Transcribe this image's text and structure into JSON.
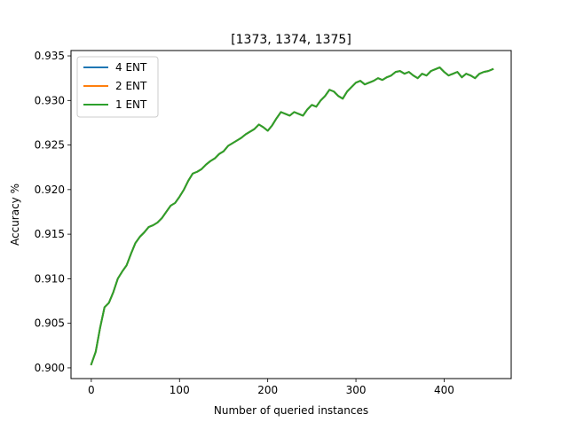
{
  "colors": {
    "series_4_ent": "#1f77b4",
    "series_2_ent": "#ff7f0e",
    "series_1_ent": "#2ca02c",
    "axes": "#000000",
    "background": "#ffffff"
  },
  "chart_data": {
    "type": "line",
    "title": "[1373, 1374, 1375]",
    "xlabel": "Number of queried instances",
    "ylabel": "Accuracy %",
    "xlim": [
      -23,
      476
    ],
    "ylim": [
      0.8988,
      0.9356
    ],
    "xticks": [
      0,
      100,
      200,
      300,
      400
    ],
    "xtick_labels": [
      "0",
      "100",
      "200",
      "300",
      "400"
    ],
    "yticks": [
      0.9,
      0.905,
      0.91,
      0.915,
      0.92,
      0.925,
      0.93,
      0.935
    ],
    "ytick_labels": [
      "0.900",
      "0.905",
      "0.910",
      "0.915",
      "0.920",
      "0.925",
      "0.930",
      "0.935"
    ],
    "grid": false,
    "legend": "top-left",
    "x": [
      0,
      5,
      10,
      15,
      20,
      25,
      30,
      35,
      40,
      45,
      50,
      55,
      60,
      65,
      70,
      75,
      80,
      85,
      90,
      95,
      100,
      105,
      110,
      115,
      120,
      125,
      130,
      135,
      140,
      145,
      150,
      155,
      160,
      165,
      170,
      175,
      180,
      185,
      190,
      195,
      200,
      205,
      210,
      215,
      220,
      225,
      230,
      235,
      240,
      245,
      250,
      255,
      260,
      265,
      270,
      275,
      280,
      285,
      290,
      295,
      300,
      305,
      310,
      315,
      320,
      325,
      330,
      335,
      340,
      345,
      350,
      355,
      360,
      365,
      370,
      375,
      380,
      385,
      390,
      395,
      400,
      405,
      410,
      415,
      420,
      425,
      430,
      435,
      440,
      445,
      450,
      455
    ],
    "series": [
      {
        "name": "4 ENT",
        "color": "#1f77b4",
        "values": [
          0.9004,
          0.9018,
          0.9045,
          0.9068,
          0.9073,
          0.9085,
          0.91,
          0.9108,
          0.9115,
          0.9128,
          0.914,
          0.9147,
          0.9152,
          0.9158,
          0.916,
          0.9163,
          0.9168,
          0.9175,
          0.9182,
          0.9185,
          0.9192,
          0.92,
          0.921,
          0.9218,
          0.922,
          0.9223,
          0.9228,
          0.9232,
          0.9235,
          0.924,
          0.9243,
          0.9249,
          0.9252,
          0.9255,
          0.9258,
          0.9262,
          0.9265,
          0.9268,
          0.9273,
          0.927,
          0.9266,
          0.9272,
          0.928,
          0.9287,
          0.9285,
          0.9283,
          0.9287,
          0.9285,
          0.9283,
          0.929,
          0.9295,
          0.9293,
          0.93,
          0.9305,
          0.9312,
          0.931,
          0.9305,
          0.9302,
          0.931,
          0.9315,
          0.932,
          0.9322,
          0.9318,
          0.932,
          0.9322,
          0.9325,
          0.9323,
          0.9326,
          0.9328,
          0.9332,
          0.9333,
          0.933,
          0.9332,
          0.9328,
          0.9325,
          0.933,
          0.9328,
          0.9333,
          0.9335,
          0.9337,
          0.9332,
          0.9328,
          0.933,
          0.9332,
          0.9326,
          0.933,
          0.9328,
          0.9325,
          0.933,
          0.9332,
          0.9333,
          0.9335
        ]
      },
      {
        "name": "2 ENT",
        "color": "#ff7f0e",
        "values": [
          0.9004,
          0.9018,
          0.9045,
          0.9068,
          0.9073,
          0.9085,
          0.91,
          0.9108,
          0.9115,
          0.9128,
          0.914,
          0.9147,
          0.9152,
          0.9158,
          0.916,
          0.9163,
          0.9168,
          0.9175,
          0.9182,
          0.9185,
          0.9192,
          0.92,
          0.921,
          0.9218,
          0.922,
          0.9223,
          0.9228,
          0.9232,
          0.9235,
          0.924,
          0.9243,
          0.9249,
          0.9252,
          0.9255,
          0.9258,
          0.9262,
          0.9265,
          0.9268,
          0.9273,
          0.927,
          0.9266,
          0.9272,
          0.928,
          0.9287,
          0.9285,
          0.9283,
          0.9287,
          0.9285,
          0.9283,
          0.929,
          0.9295,
          0.9293,
          0.93,
          0.9305,
          0.9312,
          0.931,
          0.9305,
          0.9302,
          0.931,
          0.9315,
          0.932,
          0.9322,
          0.9318,
          0.932,
          0.9322,
          0.9325,
          0.9323,
          0.9326,
          0.9328,
          0.9332,
          0.9333,
          0.933,
          0.9332,
          0.9328,
          0.9325,
          0.933,
          0.9328,
          0.9333,
          0.9335,
          0.9337,
          0.9332,
          0.9328,
          0.933,
          0.9332,
          0.9326,
          0.933,
          0.9328,
          0.9325,
          0.933,
          0.9332,
          0.9333,
          0.9335
        ]
      },
      {
        "name": "1 ENT",
        "color": "#2ca02c",
        "values": [
          0.9004,
          0.9018,
          0.9045,
          0.9068,
          0.9073,
          0.9085,
          0.91,
          0.9108,
          0.9115,
          0.9128,
          0.914,
          0.9147,
          0.9152,
          0.9158,
          0.916,
          0.9163,
          0.9168,
          0.9175,
          0.9182,
          0.9185,
          0.9192,
          0.92,
          0.921,
          0.9218,
          0.922,
          0.9223,
          0.9228,
          0.9232,
          0.9235,
          0.924,
          0.9243,
          0.9249,
          0.9252,
          0.9255,
          0.9258,
          0.9262,
          0.9265,
          0.9268,
          0.9273,
          0.927,
          0.9266,
          0.9272,
          0.928,
          0.9287,
          0.9285,
          0.9283,
          0.9287,
          0.9285,
          0.9283,
          0.929,
          0.9295,
          0.9293,
          0.93,
          0.9305,
          0.9312,
          0.931,
          0.9305,
          0.9302,
          0.931,
          0.9315,
          0.932,
          0.9322,
          0.9318,
          0.932,
          0.9322,
          0.9325,
          0.9323,
          0.9326,
          0.9328,
          0.9332,
          0.9333,
          0.933,
          0.9332,
          0.9328,
          0.9325,
          0.933,
          0.9328,
          0.9333,
          0.9335,
          0.9337,
          0.9332,
          0.9328,
          0.933,
          0.9332,
          0.9326,
          0.933,
          0.9328,
          0.9325,
          0.933,
          0.9332,
          0.9333,
          0.9335
        ]
      }
    ]
  }
}
